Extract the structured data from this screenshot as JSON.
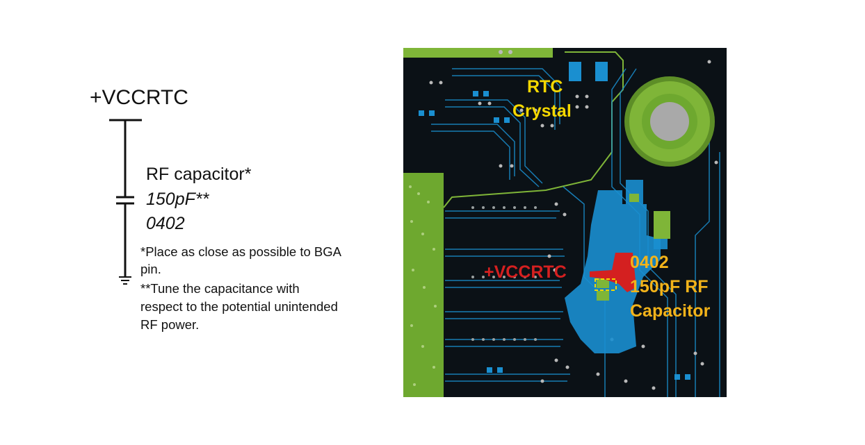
{
  "schematic": {
    "rail_label": "+VCCRTC",
    "cap_name": "RF capacitor*",
    "cap_value": "150pF**",
    "cap_package": "0402",
    "note1_line1": "*Place as close as possible to BGA",
    "note1_line2": "pin.",
    "note2_line1": "**Tune the capacitance with",
    "note2_line2": "respect to the potential unintended",
    "note2_line3": "RF power."
  },
  "pcb": {
    "rtc_label_line1": "RTC",
    "rtc_label_line2": "Crystal",
    "rail_label": "+VCCRTC",
    "cap_label_line1": "0402",
    "cap_label_line2": "150pF RF",
    "cap_label_line3": "Capacitor"
  },
  "colors": {
    "board": "#0b1116",
    "trace_blue": "#1a8fd0",
    "copper_green": "#7fb538",
    "rail_red": "#d42020",
    "label_yellow": "#f5d800",
    "label_orange": "#f2b31a"
  }
}
